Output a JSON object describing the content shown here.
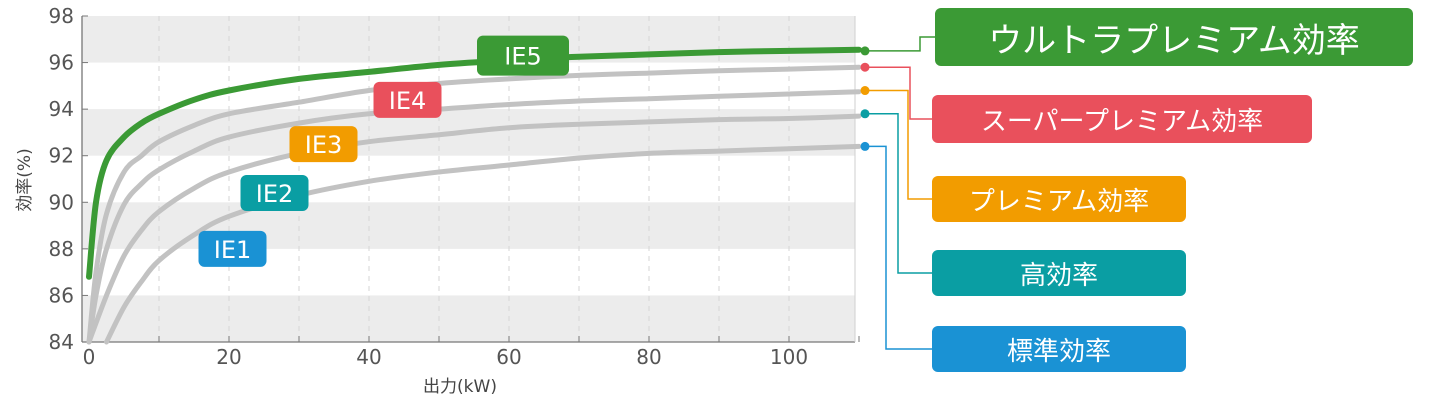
{
  "chart_data": {
    "type": "line",
    "xlabel": "出力(kW)",
    "ylabel": "効率(%)",
    "xlim": [
      0,
      110
    ],
    "ylim": [
      84,
      98
    ],
    "xticks": [
      "0",
      "20",
      "40",
      "60",
      "80",
      "100"
    ],
    "yticks": [
      "84",
      "86",
      "88",
      "90",
      "92",
      "94",
      "96",
      "98"
    ],
    "bands": [
      [
        84,
        86
      ],
      [
        88,
        90
      ],
      [
        92,
        94
      ],
      [
        96,
        98
      ]
    ],
    "grid": "dashed vertical",
    "series": [
      {
        "name": "IE1",
        "color": "#c2c2c2",
        "x": [
          2.5,
          5,
          7.5,
          10,
          15,
          20,
          30,
          40,
          50,
          60,
          70,
          80,
          90,
          100,
          110
        ],
        "y": [
          84.0,
          85.5,
          86.6,
          87.5,
          88.6,
          89.4,
          90.3,
          90.9,
          91.3,
          91.6,
          91.9,
          92.1,
          92.2,
          92.3,
          92.4
        ]
      },
      {
        "name": "IE2",
        "color": "#c2c2c2",
        "x": [
          0,
          2.5,
          5,
          7.5,
          10,
          15,
          20,
          30,
          40,
          50,
          60,
          70,
          80,
          90,
          100,
          110
        ],
        "y": [
          84.0,
          86.0,
          87.7,
          88.8,
          89.6,
          90.6,
          91.3,
          92.1,
          92.6,
          92.9,
          93.2,
          93.35,
          93.45,
          93.55,
          93.6,
          93.7
        ]
      },
      {
        "name": "IE3",
        "color": "#c2c2c2",
        "x": [
          0,
          1,
          2.5,
          5,
          7.5,
          10,
          15,
          20,
          30,
          40,
          50,
          60,
          70,
          80,
          90,
          100,
          110
        ],
        "y": [
          84.0,
          86.0,
          88.0,
          89.9,
          90.8,
          91.4,
          92.2,
          92.8,
          93.4,
          93.8,
          94.0,
          94.2,
          94.35,
          94.45,
          94.55,
          94.65,
          94.75
        ]
      },
      {
        "name": "IE4",
        "color": "#c2c2c2",
        "x": [
          0,
          1,
          2.5,
          5,
          7.5,
          10,
          15,
          20,
          30,
          40,
          50,
          60,
          70,
          80,
          90,
          100,
          110
        ],
        "y": [
          84.0,
          87.0,
          89.5,
          91.3,
          92.0,
          92.6,
          93.3,
          93.8,
          94.3,
          94.8,
          95.1,
          95.3,
          95.45,
          95.55,
          95.65,
          95.72,
          95.8
        ]
      },
      {
        "name": "IE5",
        "color": "#3b9a35",
        "x": [
          0,
          1,
          2.5,
          5,
          7.5,
          10,
          15,
          20,
          30,
          40,
          50,
          60,
          70,
          80,
          90,
          100,
          110
        ],
        "y": [
          86.8,
          90.0,
          91.8,
          92.8,
          93.4,
          93.8,
          94.4,
          94.8,
          95.3,
          95.6,
          95.9,
          96.1,
          96.25,
          96.35,
          96.45,
          96.5,
          96.55
        ]
      }
    ],
    "curve_tags": [
      {
        "label": "IE1",
        "color": "#1a92d4",
        "x": 20.5,
        "y": 88.0
      },
      {
        "label": "IE2",
        "color": "#0a9ea3",
        "x": 26.5,
        "y": 90.4
      },
      {
        "label": "IE3",
        "color": "#f29c00",
        "x": 33.5,
        "y": 92.5
      },
      {
        "label": "IE4",
        "color": "#e9505c",
        "x": 45.5,
        "y": 94.4
      },
      {
        "label": "IE5",
        "color": "#3b9a35",
        "x": 62.0,
        "y": 96.3
      }
    ],
    "legend": [
      {
        "label": "ウルトラプレミアム効率",
        "color": "#3b9a35",
        "y": 96.5
      },
      {
        "label": "スーパープレミアム効率",
        "color": "#e9505c",
        "y": 95.8
      },
      {
        "label": "プレミアム効率",
        "color": "#f29c00",
        "y": 94.8
      },
      {
        "label": "高効率",
        "color": "#0a9ea3",
        "y": 93.8
      },
      {
        "label": "標準効率",
        "color": "#1a92d4",
        "y": 92.4
      }
    ]
  }
}
